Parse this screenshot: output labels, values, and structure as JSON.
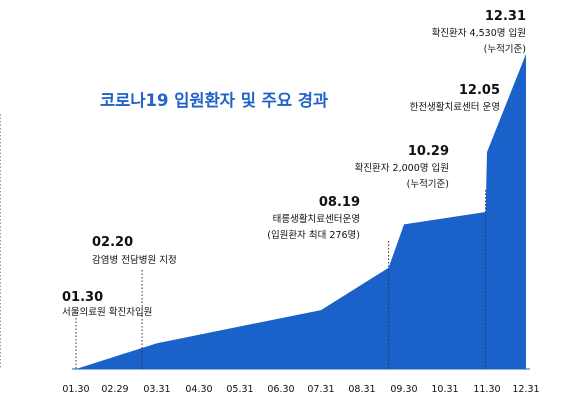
{
  "chart_data": {
    "type": "area",
    "title": "코로나19 입원환자 및 주요 경과",
    "x_ticks": [
      "01.30",
      "02.29",
      "03.31",
      "04.30",
      "05.31",
      "06.30",
      "07.31",
      "08.31",
      "09.30",
      "10.31",
      "11.30",
      "12.31"
    ],
    "points": [
      {
        "x": "01.30",
        "y": 0
      },
      {
        "x": "03.31",
        "y": 250
      },
      {
        "x": "07.31",
        "y": 570
      },
      {
        "x": "08.19",
        "y": 980
      },
      {
        "x": "09.30",
        "y": 1400
      },
      {
        "x": "10.29",
        "y": 1520
      },
      {
        "x": "11.30",
        "y": 2100
      },
      {
        "x": "12.31",
        "y": 3050
      }
    ],
    "ylim": [
      0,
      3050
    ],
    "grid": false,
    "legend": "none",
    "color": "#1a62c9",
    "annotations": [
      {
        "x": "01.30",
        "date": "01.30",
        "lines": [
          "서울의료원 확진자입원"
        ]
      },
      {
        "x": "02.20",
        "date": "02.20",
        "lines": [
          "감염병 전담병원 지정"
        ]
      },
      {
        "x": "08.19",
        "date": "08.19",
        "lines": [
          "태릉생활치료센터운영",
          "(입원환자 최대 276명)"
        ]
      },
      {
        "x": "10.29",
        "date": "10.29",
        "lines": [
          "확진환자 2,000명 입원",
          "(누적기준)"
        ]
      },
      {
        "x": "12.05",
        "date": "12.05",
        "lines": [
          "한전생활치료센터 운영"
        ]
      },
      {
        "x": "12.31",
        "date": "12.31",
        "lines": [
          "확진환자 4,530명 입원",
          "(누적기준)"
        ]
      }
    ]
  }
}
